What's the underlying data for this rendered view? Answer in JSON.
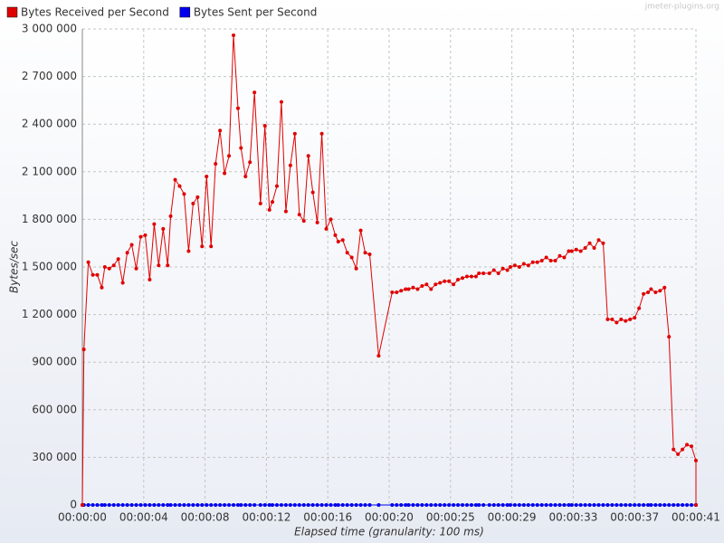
{
  "chart_data": {
    "type": "line",
    "watermark": "jmeter-plugins.org",
    "y_label": "Bytes/sec",
    "x_label": "Elapsed time (granularity: 100 ms)",
    "grid": true,
    "legend": "top-left",
    "xlim": [
      0,
      41
    ],
    "ylim": [
      0,
      3000000
    ],
    "yticks": [
      0,
      {
        "value": 300000,
        "label": "300 000"
      },
      {
        "value": 600000,
        "label": "600 000"
      },
      {
        "value": 900000,
        "label": "900 000"
      },
      {
        "value": 1200000,
        "label": "1 200 000"
      },
      {
        "value": 1500000,
        "label": "1 500 000"
      },
      {
        "value": 1800000,
        "label": "1 800 000"
      },
      {
        "value": 2100000,
        "label": "2 100 000"
      },
      {
        "value": 2400000,
        "label": "2 400 000"
      },
      {
        "value": 2700000,
        "label": "2 700 000"
      },
      {
        "value": 3000000,
        "label": "3 000 000"
      }
    ],
    "xticks": [
      {
        "value": 0,
        "label": "00:00:00"
      },
      {
        "value": 4.1,
        "label": "00:00:04"
      },
      {
        "value": 8.2,
        "label": "00:00:08"
      },
      {
        "value": 12.3,
        "label": "00:00:12"
      },
      {
        "value": 16.4,
        "label": "00:00:16"
      },
      {
        "value": 20.5,
        "label": "00:00:20"
      },
      {
        "value": 24.6,
        "label": "00:00:25"
      },
      {
        "value": 28.7,
        "label": "00:00:29"
      },
      {
        "value": 32.8,
        "label": "00:00:33"
      },
      {
        "value": 36.9,
        "label": "00:00:37"
      },
      {
        "value": 41,
        "label": "00:00:41"
      }
    ],
    "x": [
      0,
      0.1,
      0.4,
      0.7,
      1.0,
      1.3,
      1.5,
      1.8,
      2.1,
      2.4,
      2.7,
      3.0,
      3.3,
      3.6,
      3.9,
      4.2,
      4.5,
      4.8,
      5.1,
      5.4,
      5.7,
      5.9,
      6.2,
      6.5,
      6.8,
      7.1,
      7.4,
      7.7,
      8.0,
      8.3,
      8.6,
      8.9,
      9.2,
      9.5,
      9.8,
      10.1,
      10.4,
      10.6,
      10.9,
      11.2,
      11.5,
      11.9,
      12.2,
      12.5,
      12.7,
      13.0,
      13.3,
      13.6,
      13.9,
      14.2,
      14.5,
      14.8,
      15.1,
      15.4,
      15.7,
      16.0,
      16.3,
      16.6,
      16.9,
      17.1,
      17.4,
      17.7,
      18.0,
      18.3,
      18.6,
      18.9,
      19.2,
      19.8,
      20.7,
      21.0,
      21.3,
      21.6,
      21.8,
      22.1,
      22.4,
      22.7,
      23.0,
      23.3,
      23.6,
      23.9,
      24.2,
      24.5,
      24.8,
      25.1,
      25.4,
      25.7,
      26.0,
      26.3,
      26.5,
      26.8,
      27.2,
      27.5,
      27.8,
      28.1,
      28.4,
      28.6,
      28.9,
      29.2,
      29.5,
      29.8,
      30.1,
      30.4,
      30.7,
      31.0,
      31.3,
      31.6,
      31.9,
      32.2,
      32.5,
      32.7,
      33.0,
      33.3,
      33.6,
      33.9,
      34.2,
      34.5,
      34.8,
      35.1,
      35.4,
      35.7,
      36.0,
      36.3,
      36.6,
      36.9,
      37.2,
      37.5,
      37.8,
      38.0,
      38.3,
      38.6,
      38.9,
      39.2,
      39.5,
      39.8,
      40.1,
      40.4,
      40.7,
      41.0,
      41.0
    ],
    "series": [
      {
        "name": "Bytes Received per Second",
        "color": "#e00000",
        "values": [
          0,
          980000,
          1530000,
          1450000,
          1450000,
          1370000,
          1500000,
          1490000,
          1510000,
          1550000,
          1400000,
          1590000,
          1640000,
          1490000,
          1690000,
          1700000,
          1420000,
          1770000,
          1510000,
          1740000,
          1510000,
          1820000,
          2050000,
          2010000,
          1960000,
          1600000,
          1900000,
          1940000,
          1630000,
          2070000,
          1630000,
          2150000,
          2360000,
          2090000,
          2200000,
          2960000,
          2500000,
          2250000,
          2070000,
          2160000,
          2600000,
          1900000,
          2390000,
          1860000,
          1910000,
          2010000,
          2540000,
          1850000,
          2140000,
          2340000,
          1830000,
          1790000,
          2200000,
          1970000,
          1780000,
          2340000,
          1740000,
          1800000,
          1700000,
          1660000,
          1670000,
          1590000,
          1560000,
          1490000,
          1730000,
          1590000,
          1580000,
          940000,
          1340000,
          1340000,
          1350000,
          1360000,
          1360000,
          1370000,
          1360000,
          1380000,
          1390000,
          1360000,
          1390000,
          1400000,
          1410000,
          1410000,
          1390000,
          1420000,
          1430000,
          1440000,
          1440000,
          1440000,
          1460000,
          1460000,
          1460000,
          1480000,
          1460000,
          1490000,
          1480000,
          1500000,
          1510000,
          1500000,
          1520000,
          1510000,
          1530000,
          1530000,
          1540000,
          1560000,
          1540000,
          1540000,
          1570000,
          1560000,
          1600000,
          1600000,
          1610000,
          1600000,
          1620000,
          1650000,
          1620000,
          1670000,
          1650000,
          1170000,
          1170000,
          1150000,
          1170000,
          1160000,
          1170000,
          1180000,
          1240000,
          1330000,
          1340000,
          1360000,
          1340000,
          1350000,
          1370000,
          1060000,
          350000,
          320000,
          350000,
          380000,
          370000,
          280000,
          0
        ]
      },
      {
        "name": "Bytes Sent per Second",
        "color": "#0000ee",
        "values": [
          0,
          0,
          0,
          0,
          0,
          0,
          0,
          0,
          0,
          0,
          0,
          0,
          0,
          0,
          0,
          0,
          0,
          0,
          0,
          0,
          0,
          0,
          0,
          0,
          0,
          0,
          0,
          0,
          0,
          0,
          0,
          0,
          0,
          0,
          0,
          0,
          0,
          0,
          0,
          0,
          0,
          0,
          0,
          0,
          0,
          0,
          0,
          0,
          0,
          0,
          0,
          0,
          0,
          0,
          0,
          0,
          0,
          0,
          0,
          0,
          0,
          0,
          0,
          0,
          0,
          0,
          0,
          0,
          0,
          0,
          0,
          0,
          0,
          0,
          0,
          0,
          0,
          0,
          0,
          0,
          0,
          0,
          0,
          0,
          0,
          0,
          0,
          0,
          0,
          0,
          0,
          0,
          0,
          0,
          0,
          0,
          0,
          0,
          0,
          0,
          0,
          0,
          0,
          0,
          0,
          0,
          0,
          0,
          0,
          0,
          0,
          0,
          0,
          0,
          0,
          0,
          0,
          0,
          0,
          0,
          0,
          0,
          0,
          0,
          0,
          0,
          0,
          0,
          0,
          0,
          0,
          0,
          0,
          0,
          0,
          0,
          0,
          0,
          0
        ]
      }
    ]
  }
}
